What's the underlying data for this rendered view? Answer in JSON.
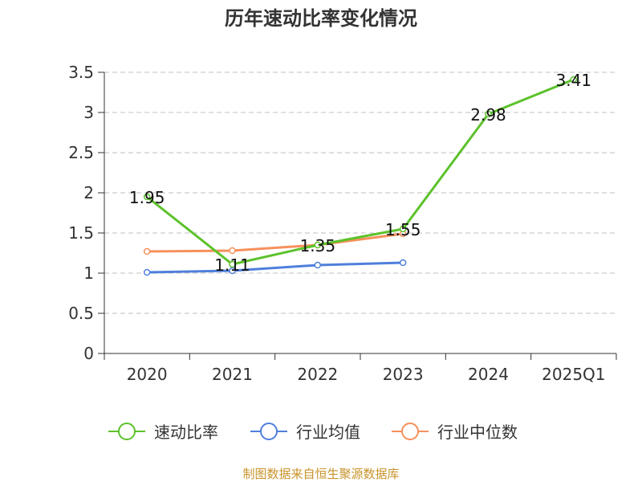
{
  "chart_data": {
    "type": "line",
    "title": "历年速动比率变化情况",
    "categories": [
      "2020",
      "2021",
      "2022",
      "2023",
      "2024",
      "2025Q1"
    ],
    "ylim": [
      0,
      3.5
    ],
    "yticks": [
      0,
      0.5,
      1,
      1.5,
      2,
      2.5,
      3,
      3.5
    ],
    "ytick_labels": [
      "0",
      "0.5",
      "1",
      "1.5",
      "2",
      "2.5",
      "3",
      "3.5"
    ],
    "grid": true,
    "legend_position": "bottom",
    "series": [
      {
        "name": "速动比率",
        "color": "#5cc22b",
        "values": [
          1.95,
          1.11,
          1.35,
          1.55,
          2.98,
          3.41
        ],
        "labels": [
          "1.95",
          "1.11",
          "1.35",
          "1.55",
          "2.98",
          "3.41"
        ],
        "show_labels": true
      },
      {
        "name": "行业均值",
        "color": "#4f7fdc",
        "values": [
          1.01,
          1.03,
          1.1,
          1.13,
          null,
          null
        ],
        "show_labels": false
      },
      {
        "name": "行业中位数",
        "color": "#f6905c",
        "values": [
          1.27,
          1.28,
          1.35,
          1.49,
          null,
          null
        ],
        "show_labels": false
      }
    ],
    "source": "制图数据来自恒生聚源数据库"
  }
}
